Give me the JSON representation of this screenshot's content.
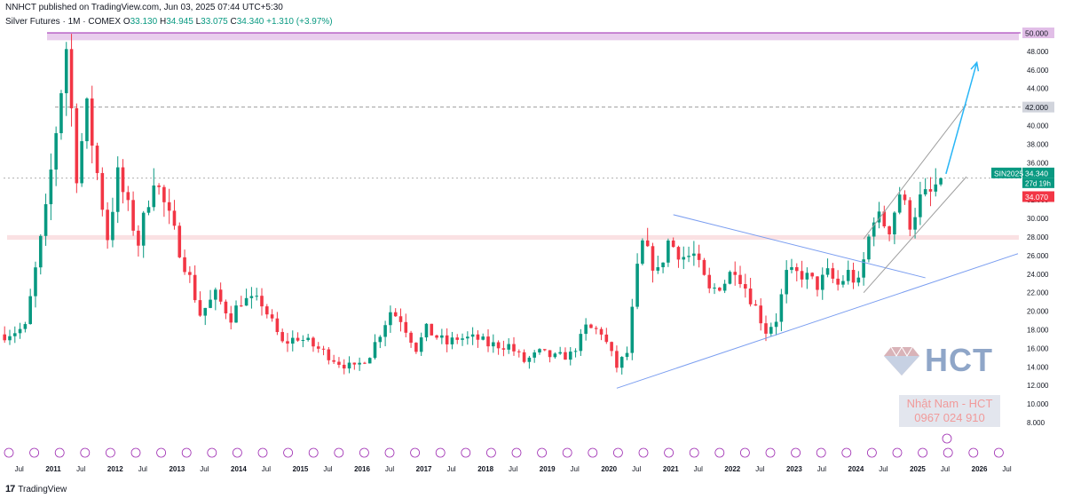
{
  "header": {
    "published": "NNHCT published on TradingView.com, Jun 03, 2025 07:44 UTC+5:30",
    "symbol": "Silver Futures · 1M · COMEX",
    "open_label": "O",
    "open": "33.130",
    "high_label": "H",
    "high": "34.945",
    "low_label": "L",
    "low": "33.075",
    "close_label": "C",
    "close": "34.340",
    "change": "+1.310 (+3.97%)"
  },
  "footer": {
    "logo_text": "TradingView",
    "logo_mark": "17"
  },
  "watermark": {
    "brand": "HCT",
    "contact_name": "Nhật Nam - HCT",
    "contact_phone": "0967 024 910"
  },
  "price_tags": {
    "resistance_top": "50.000",
    "target_level": "42.000",
    "symbol_tag": "SIN2025",
    "last_price": "34.340",
    "countdown": "27d 19h",
    "prev_price": "34.070"
  },
  "colors": {
    "up": "#089981",
    "down": "#f23645",
    "zone_top": "#e1bee7",
    "zone_mid": "#f8d7da",
    "trendline": "#7b9ef0",
    "channel": "#9e9e9e",
    "arrow": "#29b6f6",
    "axis_text": "#131722"
  },
  "chart_data": {
    "type": "candlestick",
    "title": "Silver Futures · 1M · COMEX",
    "ylim": [
      8,
      50
    ],
    "y_ticks": [
      "8.000",
      "10.000",
      "12.000",
      "14.000",
      "16.000",
      "18.000",
      "20.000",
      "22.000",
      "24.000",
      "26.000",
      "28.000",
      "30.000",
      "32.000",
      "34.000",
      "36.000",
      "38.000",
      "40.000",
      "42.000",
      "44.000",
      "46.000",
      "48.000",
      "50.000"
    ],
    "x_labels": [
      "Jul",
      "2011",
      "Jul",
      "2012",
      "Jul",
      "2013",
      "Jul",
      "2014",
      "Jul",
      "2015",
      "Jul",
      "2016",
      "Jul",
      "2017",
      "Jul",
      "2018",
      "Jul",
      "2019",
      "Jul",
      "2020",
      "Jul",
      "2021",
      "Jul",
      "2022",
      "Jul",
      "2023",
      "Jul",
      "2024",
      "Jul",
      "2025",
      "Jul",
      "2026",
      "Jul"
    ],
    "x_range": [
      "2010-04",
      "2026-10"
    ],
    "zones": [
      {
        "name": "resistance",
        "from": 49.2,
        "to": 50.0
      },
      {
        "name": "support",
        "from": 27.7,
        "to": 28.2
      }
    ],
    "levels": [
      50.0,
      42.0,
      34.34
    ],
    "trendlines": [
      {
        "from": [
          "2020-03",
          11.7
        ],
        "to": [
          "2026-09",
          26.2
        ]
      },
      {
        "from": [
          "2021-02",
          30.4
        ],
        "to": [
          "2025-03",
          23.6
        ]
      }
    ],
    "channel": [
      {
        "from": [
          "2024-03",
          27.8
        ],
        "to": [
          "2025-11",
          42.3
        ]
      },
      {
        "from": [
          "2024-03",
          22.0
        ],
        "to": [
          "2025-11",
          34.5
        ]
      }
    ],
    "arrow": {
      "from": [
        "2025-07",
        34.8
      ],
      "to": [
        "2026-01",
        46.8
      ]
    },
    "series": [
      {
        "anchors": [
          [
            "2010-04",
            17.5
          ],
          [
            "2010-08",
            18.2
          ],
          [
            "2010-12",
            30.6
          ],
          [
            "2011-04",
            48.5
          ],
          [
            "2011-06",
            34.9
          ],
          [
            "2011-08",
            41.7
          ],
          [
            "2011-12",
            28.0
          ],
          [
            "2012-02",
            34.6
          ],
          [
            "2012-06",
            27.4
          ],
          [
            "2012-09",
            34.6
          ],
          [
            "2012-12",
            30.0
          ],
          [
            "2013-04",
            23.5
          ],
          [
            "2013-06",
            19.7
          ],
          [
            "2013-09",
            21.7
          ],
          [
            "2013-12",
            19.4
          ],
          [
            "2014-02",
            21.2
          ],
          [
            "2014-06",
            20.9
          ],
          [
            "2014-10",
            16.5
          ],
          [
            "2015-01",
            17.2
          ],
          [
            "2015-03",
            16.6
          ],
          [
            "2015-06",
            15.6
          ],
          [
            "2015-09",
            14.5
          ],
          [
            "2015-12",
            13.8
          ],
          [
            "2016-03",
            15.4
          ],
          [
            "2016-07",
            20.0
          ],
          [
            "2016-09",
            19.2
          ],
          [
            "2016-12",
            16.0
          ],
          [
            "2017-02",
            18.0
          ],
          [
            "2017-06",
            16.5
          ],
          [
            "2017-08",
            17.1
          ],
          [
            "2017-12",
            17.0
          ],
          [
            "2018-02",
            16.4
          ],
          [
            "2018-06",
            16.3
          ],
          [
            "2018-09",
            14.6
          ],
          [
            "2018-12",
            15.5
          ],
          [
            "2019-03",
            15.0
          ],
          [
            "2019-06",
            15.3
          ],
          [
            "2019-08",
            17.0
          ],
          [
            "2019-09",
            18.2
          ],
          [
            "2019-12",
            17.8
          ],
          [
            "2020-03",
            14.0
          ],
          [
            "2020-05",
            15.5
          ],
          [
            "2020-07",
            24.4
          ],
          [
            "2020-08",
            27.2
          ],
          [
            "2020-11",
            24.1
          ],
          [
            "2021-01",
            27.5
          ],
          [
            "2021-04",
            25.9
          ],
          [
            "2021-06",
            26.0
          ],
          [
            "2021-09",
            22.1
          ],
          [
            "2021-12",
            23.2
          ],
          [
            "2022-02",
            24.8
          ],
          [
            "2022-04",
            22.6
          ],
          [
            "2022-06",
            20.4
          ],
          [
            "2022-08",
            17.9
          ],
          [
            "2022-10",
            19.2
          ],
          [
            "2022-12",
            23.9
          ],
          [
            "2023-03",
            24.0
          ],
          [
            "2023-06",
            22.8
          ],
          [
            "2023-08",
            24.0
          ],
          [
            "2023-10",
            22.8
          ],
          [
            "2023-12",
            24.1
          ],
          [
            "2024-02",
            22.9
          ],
          [
            "2024-05",
            30.4
          ],
          [
            "2024-08",
            29.0
          ],
          [
            "2024-10",
            32.8
          ],
          [
            "2024-12",
            29.6
          ],
          [
            "2025-02",
            32.0
          ],
          [
            "2025-04",
            32.6
          ],
          [
            "2025-06",
            34.34
          ]
        ]
      }
    ]
  }
}
